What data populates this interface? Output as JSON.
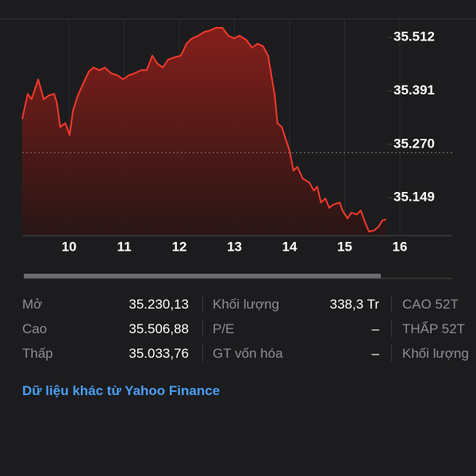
{
  "chart_data": {
    "type": "area",
    "x": [
      9.15,
      9.25,
      9.32,
      9.44,
      9.54,
      9.64,
      9.73,
      9.78,
      9.84,
      9.93,
      10.01,
      10.07,
      10.16,
      10.26,
      10.36,
      10.44,
      10.55,
      10.65,
      10.76,
      10.88,
      10.98,
      11.08,
      11.19,
      11.31,
      11.41,
      11.51,
      11.6,
      11.7,
      11.8,
      11.91,
      12.03,
      12.13,
      12.23,
      12.34,
      12.46,
      12.56,
      12.66,
      12.78,
      12.89,
      12.99,
      13.09,
      13.21,
      13.32,
      13.42,
      13.52,
      13.61,
      13.67,
      13.73,
      13.78,
      13.86,
      13.93,
      14.0,
      14.07,
      14.14,
      14.24,
      14.36,
      14.44,
      14.5,
      14.57,
      14.65,
      14.72,
      14.79,
      14.91,
      14.96,
      15.05,
      15.12,
      15.22,
      15.29,
      15.37,
      15.44,
      15.54,
      15.62,
      15.68,
      15.75
    ],
    "values": [
      35327,
      35384,
      35372,
      35417,
      35372,
      35381,
      35384,
      35363,
      35309,
      35318,
      35291,
      35345,
      35381,
      35408,
      35435,
      35444,
      35438,
      35444,
      35431,
      35426,
      35417,
      35426,
      35431,
      35438,
      35438,
      35471,
      35453,
      35444,
      35462,
      35467,
      35471,
      35498,
      35510,
      35516,
      35525,
      35528,
      35534,
      35534,
      35516,
      35510,
      35516,
      35507,
      35489,
      35498,
      35492,
      35471,
      35426,
      35381,
      35318,
      35309,
      35282,
      35255,
      35210,
      35219,
      35192,
      35183,
      35165,
      35174,
      35138,
      35147,
      35126,
      35133,
      35138,
      35120,
      35102,
      35115,
      35111,
      35120,
      35093,
      35072,
      35075,
      35084,
      35097,
      35100
    ],
    "color": "#f2392c",
    "reference_line": 35251,
    "xlim": [
      9.15,
      16.95
    ],
    "xticks": [
      10,
      11,
      12,
      13,
      14,
      15,
      16
    ],
    "ylim": [
      35063,
      35552
    ],
    "yticks": [
      {
        "value": 35149,
        "label": "35.149"
      },
      {
        "value": 35270,
        "label": "35.270"
      },
      {
        "value": 35391,
        "label": "35.391"
      },
      {
        "value": 35512,
        "label": "35.512"
      }
    ]
  },
  "stats": {
    "rows": [
      [
        "Mở",
        "35.230,13",
        "Khối lượng",
        "338,3 Tr",
        "CAO 52T"
      ],
      [
        "Cao",
        "35.506,88",
        "P/E",
        "–",
        "THẤP 52T"
      ],
      [
        "Thấp",
        "35.033,76",
        "GT vốn hóa",
        "–",
        "Khối lượng"
      ]
    ]
  },
  "footer_link": "Dữ liệu khác từ Yahoo Finance"
}
